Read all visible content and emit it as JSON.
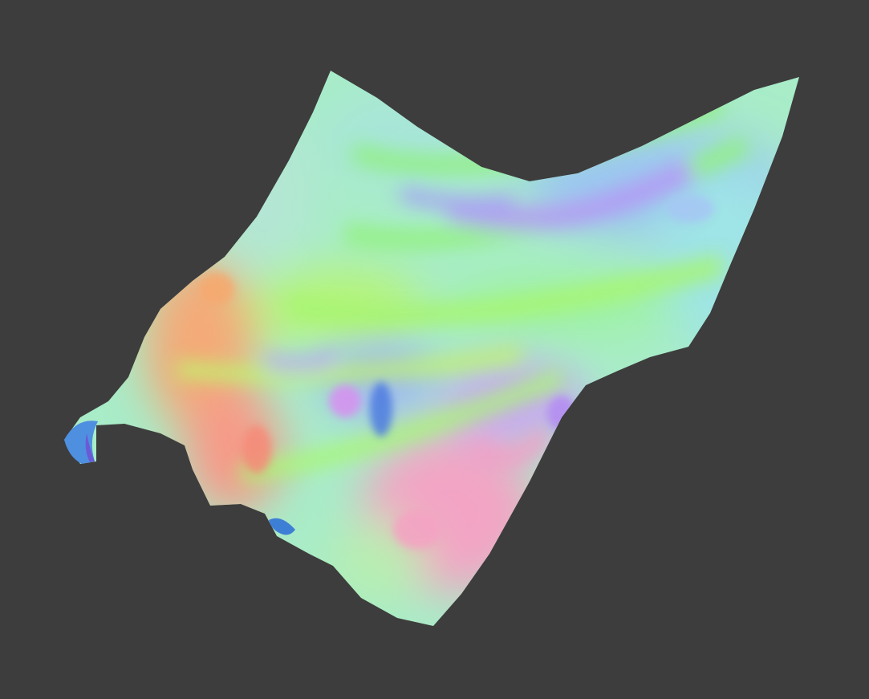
{
  "viewport": {
    "background_color": "#3d3d3d"
  },
  "surface": {
    "render_style": "normal-map shaded terrain mesh",
    "palette": {
      "cyan": "#8fe6d9",
      "green": "#8cf76e",
      "yellow_green": "#c7f56b",
      "blue": "#7aa8f5",
      "purple": "#b48af2",
      "pink": "#f5a0c0",
      "orange": "#f5a56a",
      "deep_blue": "#3a6fd6"
    }
  }
}
